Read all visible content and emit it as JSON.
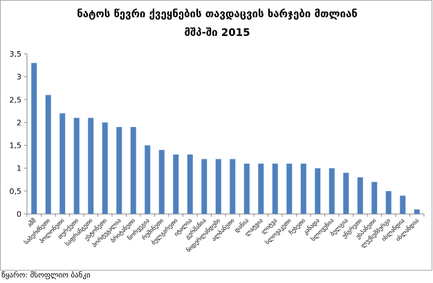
{
  "chart_data": {
    "type": "bar",
    "title": [
      "ნატოს წევრი ქვეყნების თავდაცვის ხარჯები მთლიან",
      "მშპ-ში  2015"
    ],
    "categories": [
      "აშშ",
      "საბერძნეთი",
      "პოლონეთი",
      "თურქეთი",
      "საფრანგეთი",
      "ესტონეთი",
      "პორტუგალია",
      "ბრიტანეთი",
      "ნორვეგია",
      "რუმინეთი",
      "ბულგარეთი",
      "იტალია",
      "გერმანია",
      "ნიდერლანდები",
      "ალბანეთი",
      "დანია",
      "ლატვია",
      "ლიტვა",
      "სლოვაკეთი",
      "ჩეხეთი",
      "კანადა",
      "სლოვენია",
      "ბელგია",
      "უნგრეთი",
      "ესპანეთი",
      "ლუქსემბურგი",
      "ისლანდია",
      "ისლანდია"
    ],
    "values": [
      3.3,
      2.6,
      2.2,
      2.1,
      2.1,
      2.0,
      1.9,
      1.9,
      1.5,
      1.4,
      1.3,
      1.3,
      1.2,
      1.2,
      1.2,
      1.1,
      1.1,
      1.1,
      1.1,
      1.1,
      1.0,
      1.0,
      0.9,
      0.8,
      0.7,
      0.5,
      0.4,
      0.1
    ],
    "ylim": [
      0,
      3.5
    ],
    "yticks": [
      "0",
      "0,5",
      "1",
      "1,5",
      "2",
      "2,5",
      "3",
      "3,5"
    ],
    "ytick_values": [
      0,
      0.5,
      1,
      1.5,
      2,
      2.5,
      3,
      3.5
    ],
    "grid": false,
    "legend": "none",
    "bar_color": "#4f81bd",
    "axis_color": "#868686"
  },
  "source": "წყარო:  მსოფლიო  ბანკი"
}
